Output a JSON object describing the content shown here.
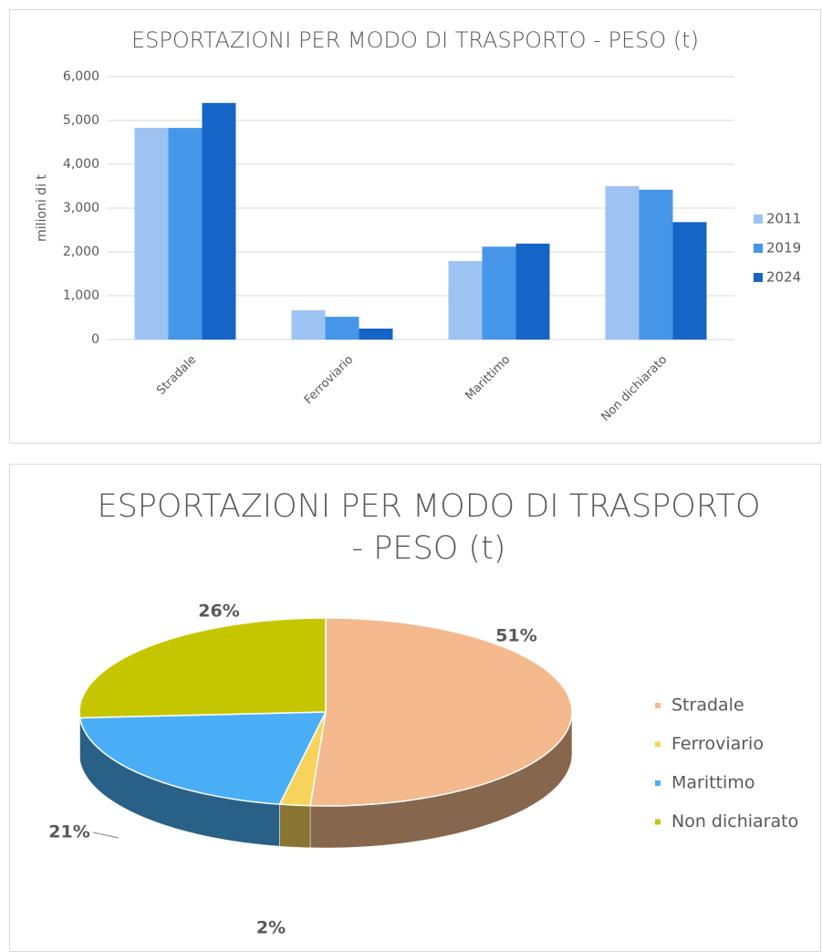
{
  "chart_data": [
    {
      "type": "bar",
      "title": "ESPORTAZIONI PER MODO DI TRASPORTO - PESO (t)",
      "y_label": "milioni di t",
      "categories": [
        "Stradale",
        "Ferroviario",
        "Marittimo",
        "Non dichiarato"
      ],
      "series": [
        {
          "name": "2011",
          "color": "#9dc3f3",
          "values": [
            4830,
            670,
            1790,
            3500
          ]
        },
        {
          "name": "2019",
          "color": "#4596e8",
          "values": [
            4830,
            520,
            2120,
            3420
          ]
        },
        {
          "name": "2024",
          "color": "#1565c8",
          "values": [
            5400,
            250,
            2190,
            2680
          ]
        }
      ],
      "ylim": [
        0,
        6000
      ],
      "yticks": [
        0,
        {
          "value": 1000,
          "label": "1,000"
        },
        {
          "value": 2000,
          "label": "2,000"
        },
        {
          "value": 3000,
          "label": "3,000"
        },
        {
          "value": 4000,
          "label": "4,000"
        },
        {
          "value": 5000,
          "label": "5,000"
        },
        {
          "value": 6000,
          "label": "6,000"
        }
      ],
      "grid": true,
      "legend": "right"
    },
    {
      "type": "pie",
      "title": "ESPORTAZIONI PER MODO DI TRASPORTO - PESO (t)",
      "categories": [
        "Stradale",
        "Ferroviario",
        "Marittimo",
        "Non dichiarato"
      ],
      "values": [
        51,
        2,
        21,
        26
      ],
      "value_labels": [
        "51%",
        "2%",
        "21%",
        "26%"
      ],
      "colors": [
        "#f4b98c",
        "#f7d35c",
        "#4aaef6",
        "#c6c600"
      ],
      "legend": "right"
    }
  ]
}
